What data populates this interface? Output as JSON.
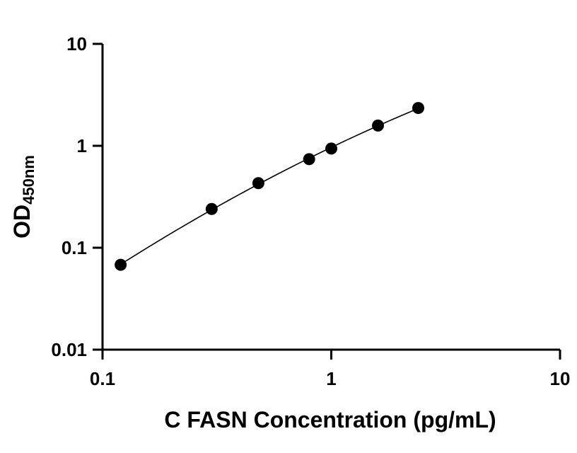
{
  "chart_data": {
    "type": "scatter",
    "title": "",
    "xlabel": "C FASN Concentration (pg/mL)",
    "ylabel": "OD",
    "ylabel_subscript": "450nm",
    "x_scale": "log",
    "y_scale": "log",
    "xlim": [
      0.1,
      10
    ],
    "ylim": [
      0.01,
      10
    ],
    "x_ticks": [
      "0.1",
      "1",
      "10"
    ],
    "y_ticks": [
      "0.01",
      "0.1",
      "1",
      "10"
    ],
    "grid": false,
    "legend": "none",
    "colors": {
      "marker": "#000000",
      "line": "#000000",
      "axis": "#000000"
    },
    "points": [
      {
        "x": 0.12,
        "y": 0.068
      },
      {
        "x": 0.3,
        "y": 0.24
      },
      {
        "x": 0.48,
        "y": 0.43
      },
      {
        "x": 0.8,
        "y": 0.74
      },
      {
        "x": 1.0,
        "y": 0.94
      },
      {
        "x": 1.6,
        "y": 1.58
      },
      {
        "x": 2.4,
        "y": 2.35
      }
    ]
  }
}
